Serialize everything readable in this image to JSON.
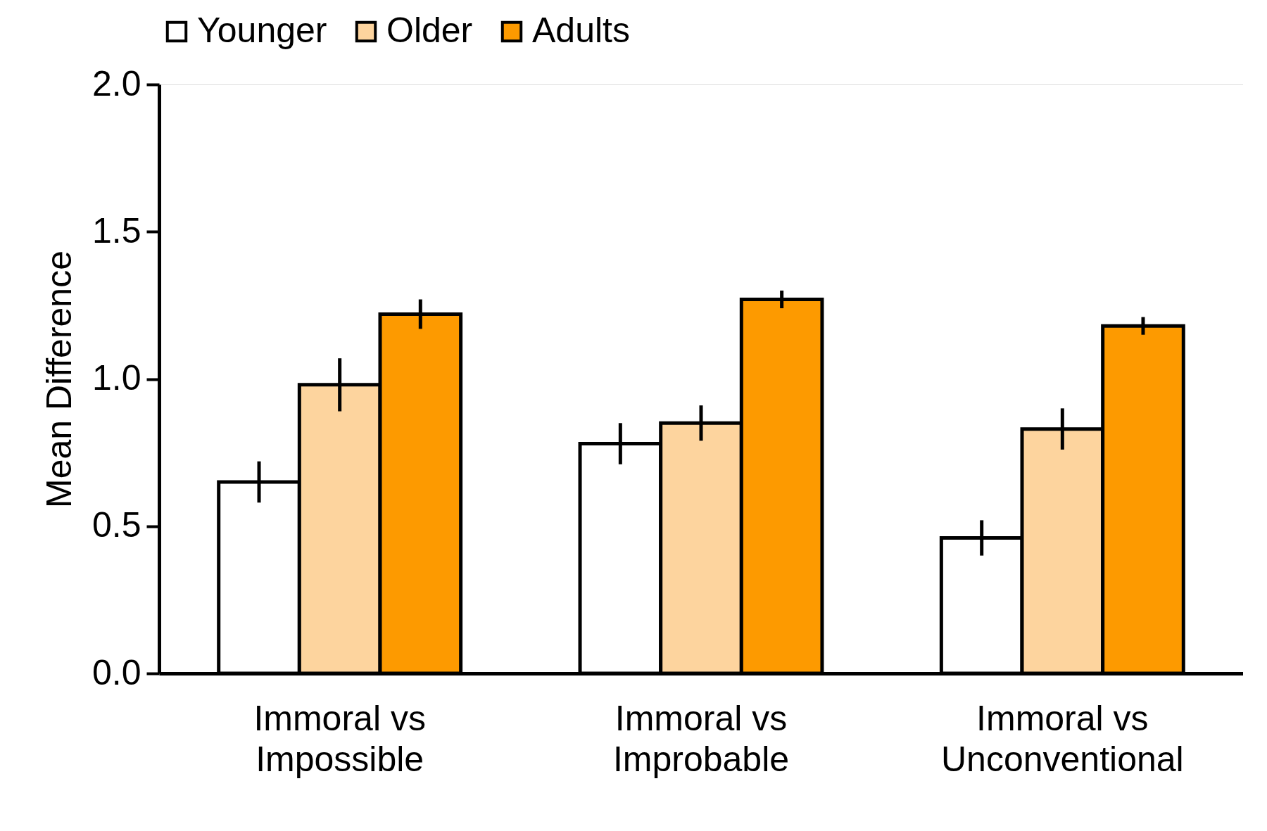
{
  "chart_data": {
    "type": "bar",
    "ylabel": "Mean Difference",
    "categories": [
      "Immoral vs Impossible",
      "Immoral vs Improbable",
      "Immoral vs Unconventional"
    ],
    "series": [
      {
        "name": "Younger",
        "color": "#ffffff",
        "values": [
          0.65,
          0.78,
          0.46
        ],
        "errors": [
          0.07,
          0.07,
          0.06
        ]
      },
      {
        "name": "Older",
        "color": "#fdd49e",
        "values": [
          0.98,
          0.85,
          0.83
        ],
        "errors": [
          0.09,
          0.06,
          0.07
        ]
      },
      {
        "name": "Adults",
        "color": "#fd9a00",
        "values": [
          1.22,
          1.27,
          1.18
        ],
        "errors": [
          0.05,
          0.03,
          0.03
        ]
      }
    ],
    "ylim": [
      0,
      2.0
    ],
    "yticks": [
      {
        "value": 0,
        "label": "0.0"
      },
      {
        "value": 0.5,
        "label": "0.5"
      },
      {
        "value": 1,
        "label": "1.0"
      },
      {
        "value": 1.5,
        "label": "1.5"
      },
      {
        "value": 2,
        "label": "2.0"
      }
    ],
    "grid": false,
    "legend": "top"
  }
}
